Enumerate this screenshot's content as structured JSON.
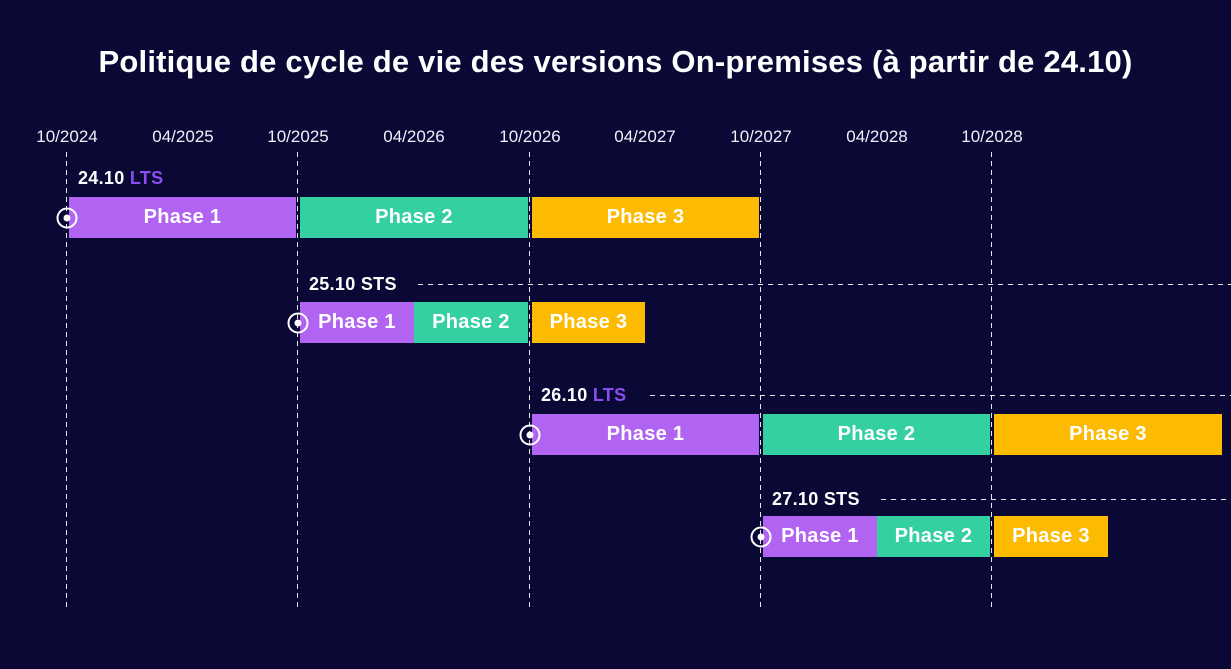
{
  "title": "Politique de cycle de vie des versions On-premises (à partir de 24.10)",
  "colors": {
    "background": "#0a0834",
    "phase1": "#b163f2",
    "phase2": "#35d0a2",
    "phase3": "#fcba00",
    "lts_label": "#8b4df0",
    "sts_label": "#ffffff",
    "text": "#ffffff"
  },
  "chart_data": {
    "type": "gantt",
    "title": "Politique de cycle de vie des versions On-premises (à partir de 24.10)",
    "x_axis": {
      "range": [
        "10/2024",
        "10/2028"
      ],
      "ticks": [
        {
          "label": "10/2024",
          "gridline": true
        },
        {
          "label": "04/2025",
          "gridline": false
        },
        {
          "label": "10/2025",
          "gridline": true
        },
        {
          "label": "04/2026",
          "gridline": false
        },
        {
          "label": "10/2026",
          "gridline": true
        },
        {
          "label": "04/2027",
          "gridline": false
        },
        {
          "label": "10/2027",
          "gridline": true
        },
        {
          "label": "04/2028",
          "gridline": false
        },
        {
          "label": "10/2028",
          "gridline": true
        }
      ]
    },
    "rows": [
      {
        "version": "24.10",
        "release_type": "LTS",
        "start": "10/2024",
        "continuation_line": false,
        "phases": [
          {
            "label": "Phase 1",
            "start": "10/2024",
            "end": "10/2025",
            "color_key": "phase1"
          },
          {
            "label": "Phase 2",
            "start": "10/2025",
            "end": "10/2026",
            "color_key": "phase2"
          },
          {
            "label": "Phase 3",
            "start": "10/2026",
            "end": "10/2027",
            "color_key": "phase3"
          }
        ]
      },
      {
        "version": "25.10",
        "release_type": "STS",
        "start": "10/2025",
        "continuation_line": true,
        "phases": [
          {
            "label": "Phase 1",
            "start": "10/2025",
            "end": "04/2026",
            "color_key": "phase1"
          },
          {
            "label": "Phase 2",
            "start": "04/2026",
            "end": "10/2026",
            "color_key": "phase2"
          },
          {
            "label": "Phase 3",
            "start": "10/2026",
            "end": "04/2027",
            "color_key": "phase3"
          }
        ]
      },
      {
        "version": "26.10",
        "release_type": "LTS",
        "start": "10/2026",
        "continuation_line": true,
        "phases": [
          {
            "label": "Phase 1",
            "start": "10/2026",
            "end": "10/2027",
            "color_key": "phase1"
          },
          {
            "label": "Phase 2",
            "start": "10/2027",
            "end": "10/2028",
            "color_key": "phase2"
          },
          {
            "label": "Phase 3",
            "start": "10/2028",
            "end": "10/2029",
            "color_key": "phase3"
          }
        ]
      },
      {
        "version": "27.10",
        "release_type": "STS",
        "start": "10/2027",
        "continuation_line": true,
        "phases": [
          {
            "label": "Phase 1",
            "start": "10/2027",
            "end": "04/2028",
            "color_key": "phase1"
          },
          {
            "label": "Phase 2",
            "start": "04/2028",
            "end": "10/2028",
            "color_key": "phase2"
          },
          {
            "label": "Phase 3",
            "start": "10/2028",
            "end": "04/2029",
            "color_key": "phase3"
          }
        ]
      }
    ]
  }
}
